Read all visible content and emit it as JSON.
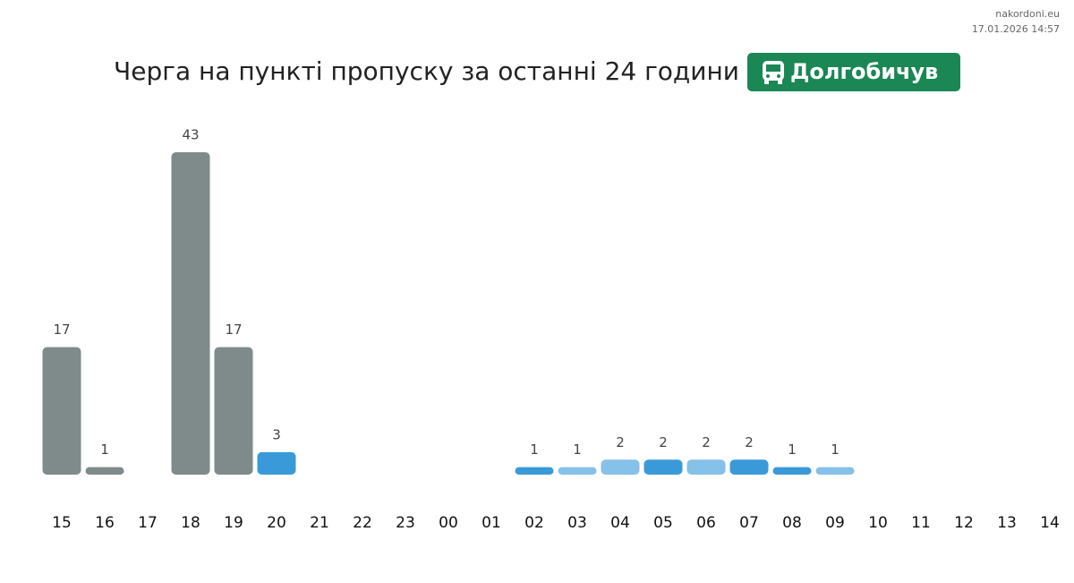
{
  "site": "nakordoni.eu",
  "timestamp": "17.01.2026 14:57",
  "chart_data": {
    "type": "bar",
    "title": "Черга на пункті пропуску за останні 24 години",
    "badge": "Долгобичув",
    "categories": [
      "15",
      "16",
      "17",
      "18",
      "19",
      "20",
      "21",
      "22",
      "23",
      "00",
      "01",
      "02",
      "03",
      "04",
      "05",
      "06",
      "07",
      "08",
      "09",
      "10",
      "11",
      "12",
      "13",
      "14"
    ],
    "values": [
      17,
      1,
      null,
      43,
      17,
      3,
      null,
      null,
      null,
      null,
      null,
      1,
      1,
      2,
      2,
      2,
      2,
      1,
      1,
      null,
      null,
      null,
      null,
      null
    ],
    "colors": [
      "#7f8b8b",
      "#7f8b8b",
      null,
      "#7f8b8b",
      "#7f8b8b",
      "#3a9ad9",
      null,
      null,
      null,
      null,
      null,
      "#3a9ad9",
      "#85c1e9",
      "#85c1e9",
      "#3a9ad9",
      "#85c1e9",
      "#3a9ad9",
      "#3a9ad9",
      "#85c1e9",
      null,
      null,
      null,
      null,
      null
    ],
    "badge_color": "#1a8754"
  }
}
